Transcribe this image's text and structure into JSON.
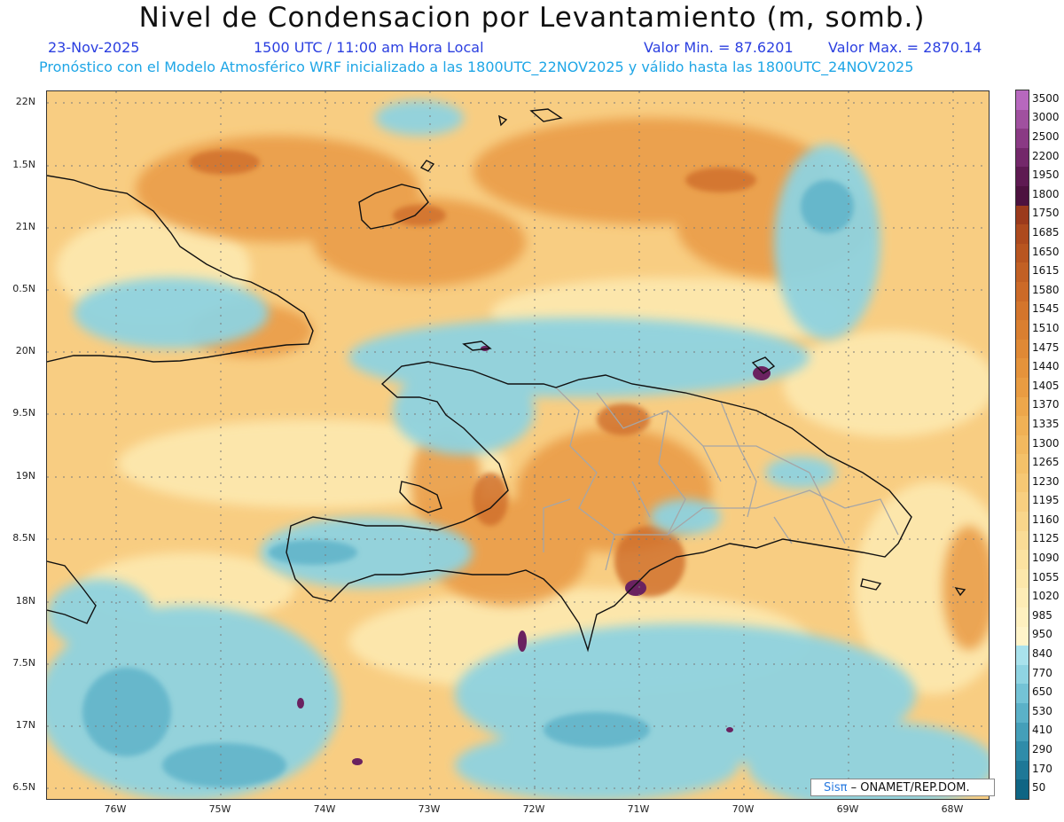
{
  "title": "Nivel de Condensacion por Levantamiento (m, somb.)",
  "header": {
    "date": "23-Nov-2025",
    "time": "1500 UTC / 11:00 am Hora Local",
    "min_label": "Valor Min. = 87.6201",
    "max_label": "Valor Max. = 2870.14",
    "forecast_note": "Pronóstico con el Modelo Atmosférico WRF inicializado a las 1800UTC_22NOV2025 y válido hasta las 1800UTC_24NOV2025"
  },
  "axes": {
    "lat_ticks": [
      "22N",
      "1.5N",
      "21N",
      "0.5N",
      "20N",
      "9.5N",
      "19N",
      "8.5N",
      "18N",
      "7.5N",
      "17N",
      "6.5N"
    ],
    "lon_ticks": [
      "76W",
      "75W",
      "74W",
      "73W",
      "72W",
      "71W",
      "70W",
      "69W",
      "68W"
    ]
  },
  "colorbar": {
    "levels": [
      "3500",
      "3000",
      "2500",
      "2200",
      "1950",
      "1800",
      "1750",
      "1685",
      "1650",
      "1615",
      "1580",
      "1545",
      "1510",
      "1475",
      "1440",
      "1405",
      "1370",
      "1335",
      "1300",
      "1265",
      "1230",
      "1195",
      "1160",
      "1125",
      "1090",
      "1055",
      "1020",
      "985",
      "950",
      "840",
      "770",
      "650",
      "530",
      "410",
      "290",
      "170",
      "50"
    ],
    "colors": [
      "#b768be",
      "#a0509f",
      "#8a3a84",
      "#73286a",
      "#5e1a52",
      "#4d123f",
      "#9b3a1c",
      "#ad4a1e",
      "#b85520",
      "#c26024",
      "#cc6a28",
      "#d4752c",
      "#da7f30",
      "#e08935",
      "#e5933b",
      "#e99c42",
      "#eda74b",
      "#f0b155",
      "#f2b95f",
      "#f4c169",
      "#f6c874",
      "#f8cf80",
      "#f9d68b",
      "#fadc96",
      "#fbe2a1",
      "#fce7ab",
      "#fdecb6",
      "#fef0bf",
      "#fff4c9",
      "#a9e2ec",
      "#8fd4e2",
      "#74c3d6",
      "#5bb1c8",
      "#449fb9",
      "#2f8ca9",
      "#1e7897",
      "#0f6584"
    ]
  },
  "footer": {
    "brand_sis": "Sisπ",
    "brand_rest": "– ONAMET/REP.DOM."
  },
  "colors": {
    "coast": "#111111",
    "provinces": "#a6a6a6",
    "grid": "#7a7a7a"
  }
}
